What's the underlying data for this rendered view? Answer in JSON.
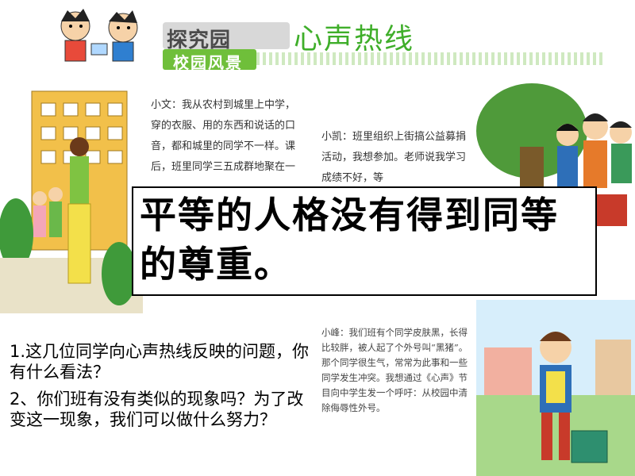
{
  "header": {
    "title": "探究园",
    "subtitle": "校园风景",
    "section": "心声热线"
  },
  "stories": {
    "xiaowen": "小文：我从农村到城里上中学，穿的衣服、用的东西和说话的口音，都和城里的同学不一样。课后，班里同学三五成群地聚在一",
    "xiaokai": "小凯：班里组织上街搞公益募捐活动，我想参加。老师说我学习成绩不好，等",
    "xiaofeng": "小峰：我们班有个同学皮肤黑，长得比较胖，被人起了个外号叫“黑猪”。那个同学很生气，常常为此事和一些同学发生冲突。我想通过《心声》节目向中学生发一个呼吁：从校园中清除侮辱性外号。"
  },
  "callout": "平等的人格没有得到同等的尊重。",
  "questions": {
    "q1": "1.这几位同学向心声热线反映的问题，你有什么看法？",
    "q2": "2、你们班有没有类似的现象吗？为了改变这一现象，我们可以做什么努力？"
  }
}
